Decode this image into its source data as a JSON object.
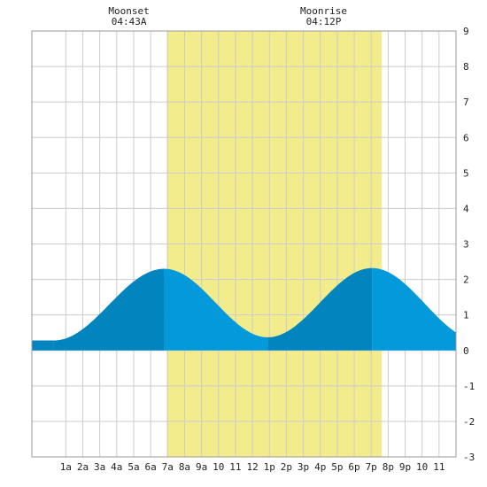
{
  "chart_data": {
    "type": "area",
    "title": "",
    "xlabel": "",
    "ylabel": "",
    "x_unit": "hour of day",
    "xlim": [
      -1,
      24
    ],
    "ylim": [
      -3,
      9
    ],
    "grid": true,
    "legend": "none",
    "x_ticks": [
      {
        "x": 1,
        "label": "1a"
      },
      {
        "x": 2,
        "label": "2a"
      },
      {
        "x": 3,
        "label": "3a"
      },
      {
        "x": 4,
        "label": "4a"
      },
      {
        "x": 5,
        "label": "5a"
      },
      {
        "x": 6,
        "label": "6a"
      },
      {
        "x": 7,
        "label": "7a"
      },
      {
        "x": 8,
        "label": "8a"
      },
      {
        "x": 9,
        "label": "9a"
      },
      {
        "x": 10,
        "label": "10"
      },
      {
        "x": 11,
        "label": "11"
      },
      {
        "x": 12,
        "label": "12"
      },
      {
        "x": 13,
        "label": "1p"
      },
      {
        "x": 14,
        "label": "2p"
      },
      {
        "x": 15,
        "label": "3p"
      },
      {
        "x": 16,
        "label": "4p"
      },
      {
        "x": 17,
        "label": "5p"
      },
      {
        "x": 18,
        "label": "6p"
      },
      {
        "x": 19,
        "label": "7p"
      },
      {
        "x": 20,
        "label": "8p"
      },
      {
        "x": 21,
        "label": "9p"
      },
      {
        "x": 22,
        "label": "10"
      },
      {
        "x": 23,
        "label": "11"
      }
    ],
    "y_ticks": [
      {
        "y": 9,
        "label": "9"
      },
      {
        "y": 8,
        "label": "8"
      },
      {
        "y": 7,
        "label": "7"
      },
      {
        "y": 6,
        "label": "6"
      },
      {
        "y": 5,
        "label": "5"
      },
      {
        "y": 4,
        "label": "4"
      },
      {
        "y": 3,
        "label": "3"
      },
      {
        "y": 2,
        "label": "2"
      },
      {
        "y": 1,
        "label": "1"
      },
      {
        "y": 0,
        "label": "0"
      },
      {
        "y": -1,
        "label": "-1"
      },
      {
        "y": -2,
        "label": "-2"
      },
      {
        "y": -3,
        "label": "-3"
      }
    ],
    "daylight": {
      "start": 6.95,
      "end": 19.63
    },
    "moon_events": [
      {
        "name": "Moonset",
        "time": "04:43A",
        "x": 4.72
      },
      {
        "name": "Moonrise",
        "time": "04:12P",
        "x": 16.2
      }
    ],
    "tide_extremes": [
      {
        "type": "low",
        "x": 0.3,
        "y": 0.28
      },
      {
        "type": "high",
        "x": 6.8,
        "y": 2.3
      },
      {
        "type": "low",
        "x": 12.9,
        "y": 0.37
      },
      {
        "type": "high",
        "x": 19.05,
        "y": 2.32
      },
      {
        "type": "low",
        "x": 25.3,
        "y": 0.3
      }
    ],
    "segments": [
      {
        "from": -1,
        "to": 0.3,
        "shade": "rising"
      },
      {
        "from": 0.3,
        "to": 6.8,
        "shade": "rising"
      },
      {
        "from": 6.8,
        "to": 12.9,
        "shade": "falling"
      },
      {
        "from": 12.9,
        "to": 19.05,
        "shade": "rising"
      },
      {
        "from": 19.05,
        "to": 24,
        "shade": "falling"
      }
    ],
    "colors": {
      "background": "#ffffff",
      "grid": "#cccccc",
      "daylight": "#f3ec8c",
      "tide_rising": "#0284bf",
      "tide_falling": "#0399db",
      "axis_text": "#222222",
      "frame": "#999999"
    }
  }
}
